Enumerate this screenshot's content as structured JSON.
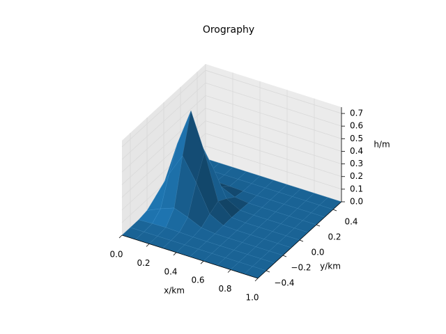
{
  "chart_data": {
    "type": "surface",
    "title": "Orography",
    "xlabel": "x/km",
    "ylabel": "y/km",
    "zlabel": "h/m",
    "color": "#1f77b4",
    "x": [
      0,
      0.1,
      0.2,
      0.3,
      0.4,
      0.5,
      0.6,
      0.7,
      0.8,
      0.9,
      1
    ],
    "y": [
      -0.5,
      -0.4,
      -0.3,
      -0.2,
      -0.1,
      0,
      0.1,
      0.2,
      0.3,
      0.4,
      0.5
    ],
    "z": [
      [
        0,
        0,
        0,
        0,
        0,
        0,
        0,
        0,
        0,
        0,
        0
      ],
      [
        0,
        0,
        0,
        0,
        0,
        0,
        0,
        0,
        0,
        0,
        0
      ],
      [
        0.001,
        0.005,
        0.008,
        0.005,
        0.001,
        0,
        0,
        0,
        0,
        0,
        0
      ],
      [
        0.014,
        0.062,
        0.102,
        0.062,
        0.014,
        0.001,
        0,
        0,
        0,
        0,
        0
      ],
      [
        0.062,
        0.276,
        0.455,
        0.276,
        0.062,
        0.005,
        0,
        0,
        0,
        0,
        0
      ],
      [
        0.102,
        0.455,
        0.75,
        0.455,
        0.102,
        0.008,
        0,
        0,
        0,
        0,
        0
      ],
      [
        0.062,
        0.276,
        0.455,
        0.276,
        0.062,
        0.005,
        0,
        0,
        0,
        0,
        0
      ],
      [
        0.014,
        0.062,
        0.102,
        0.062,
        0.014,
        0.001,
        0,
        0,
        0,
        0,
        0
      ],
      [
        0.001,
        0.005,
        0.008,
        0.005,
        0.001,
        0,
        0,
        0,
        0,
        0,
        0
      ],
      [
        0,
        0,
        0,
        0,
        0,
        0,
        0,
        0,
        0,
        0,
        0
      ],
      [
        0,
        0,
        0,
        0,
        0,
        0,
        0,
        0,
        0,
        0,
        0
      ]
    ],
    "xlim": [
      0,
      1
    ],
    "ylim": [
      -0.5,
      0.5
    ],
    "zlim": [
      0,
      0.75
    ],
    "xticks": [
      {
        "value": 0,
        "label": "0.0"
      },
      {
        "value": 0.2,
        "label": "0.2"
      },
      {
        "value": 0.4,
        "label": "0.4"
      },
      {
        "value": 0.6,
        "label": "0.6"
      },
      {
        "value": 0.8,
        "label": "0.8"
      },
      {
        "value": 1,
        "label": "1.0"
      }
    ],
    "yticks": [
      {
        "value": -0.4,
        "label": "−0.4"
      },
      {
        "value": -0.2,
        "label": "−0.2"
      },
      {
        "value": 0,
        "label": "0.0"
      },
      {
        "value": 0.2,
        "label": "0.2"
      },
      {
        "value": 0.4,
        "label": "0.4"
      }
    ],
    "zticks": [
      {
        "value": 0,
        "label": "0.0"
      },
      {
        "value": 0.1,
        "label": "0.1"
      },
      {
        "value": 0.2,
        "label": "0.2"
      },
      {
        "value": 0.3,
        "label": "0.3"
      },
      {
        "value": 0.4,
        "label": "0.4"
      },
      {
        "value": 0.5,
        "label": "0.5"
      },
      {
        "value": 0.6,
        "label": "0.6"
      },
      {
        "value": 0.7,
        "label": "0.7"
      }
    ],
    "grid": true
  }
}
